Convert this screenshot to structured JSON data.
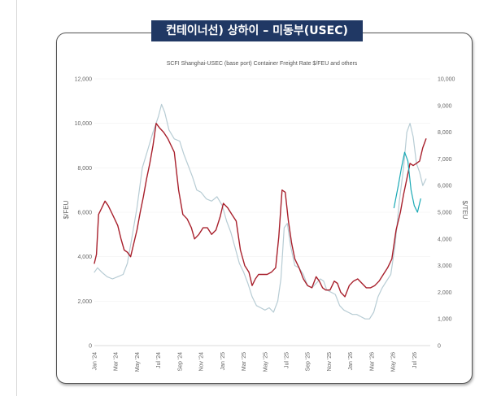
{
  "header": {
    "title": "컨테이너선) 상하이 – 미동부(USEC)"
  },
  "chart_data": {
    "type": "line",
    "title": "SCFI Shanghai-USEC (base port) Container Freight Rate $/FEU and others",
    "ylabel_left": "$/FEU",
    "ylabel_right": "$/TEU",
    "ylim_left": [
      0,
      12000
    ],
    "ylim_right": [
      0,
      10000
    ],
    "yticks_left": [
      "0",
      "2,000",
      "4,000",
      "6,000",
      "8,000",
      "10,000",
      "12,000"
    ],
    "yticks_right": [
      "0",
      "1,000",
      "2,000",
      "3,000",
      "4,000",
      "5,000",
      "6,000",
      "7,000",
      "8,000",
      "9,000",
      "10,000"
    ],
    "xlim": [
      0,
      31.5
    ],
    "x_ticks": [
      {
        "label": "Jan '24",
        "x": 0
      },
      {
        "label": "Mar '24",
        "x": 2
      },
      {
        "label": "May '24",
        "x": 4
      },
      {
        "label": "Jul '24",
        "x": 6
      },
      {
        "label": "Sep '24",
        "x": 8
      },
      {
        "label": "Nov '24",
        "x": 10
      },
      {
        "label": "Jan '25",
        "x": 12
      },
      {
        "label": "Mar '25",
        "x": 14
      },
      {
        "label": "May '25",
        "x": 16
      },
      {
        "label": "Jul '25",
        "x": 18
      },
      {
        "label": "Sep '25",
        "x": 20
      },
      {
        "label": "Nov '25",
        "x": 22
      },
      {
        "label": "Jan '26",
        "x": 24
      },
      {
        "label": "Mar '26",
        "x": 26
      },
      {
        "label": "May '26",
        "x": 28
      },
      {
        "label": "Jul '26",
        "x": 30
      }
    ],
    "series": [
      {
        "color": "#b7ccd4",
        "axis": "left",
        "points": [
          [
            0,
            3300
          ],
          [
            0.3,
            3500
          ],
          [
            0.7,
            3300
          ],
          [
            1.2,
            3100
          ],
          [
            1.7,
            3000
          ],
          [
            2.2,
            3100
          ],
          [
            2.7,
            3200
          ],
          [
            3.1,
            3700
          ],
          [
            3.5,
            4800
          ],
          [
            4,
            6200
          ],
          [
            4.5,
            8000
          ],
          [
            5,
            8800
          ],
          [
            5.5,
            9600
          ],
          [
            6,
            10300
          ],
          [
            6.3,
            10850
          ],
          [
            6.6,
            10500
          ],
          [
            7,
            9700
          ],
          [
            7.5,
            9300
          ],
          [
            8,
            9200
          ],
          [
            8.4,
            8600
          ],
          [
            8.8,
            8100
          ],
          [
            9.2,
            7600
          ],
          [
            9.6,
            7000
          ],
          [
            10,
            6900
          ],
          [
            10.5,
            6600
          ],
          [
            11,
            6500
          ],
          [
            11.5,
            6700
          ],
          [
            12,
            6300
          ],
          [
            12.4,
            5600
          ],
          [
            12.8,
            5100
          ],
          [
            13.2,
            4400
          ],
          [
            13.6,
            3700
          ],
          [
            14,
            3300
          ],
          [
            14.4,
            2800
          ],
          [
            14.8,
            2200
          ],
          [
            15.2,
            1800
          ],
          [
            15.6,
            1700
          ],
          [
            16,
            1600
          ],
          [
            16.4,
            1700
          ],
          [
            16.8,
            1500
          ],
          [
            17.2,
            2000
          ],
          [
            17.5,
            3000
          ],
          [
            17.8,
            5300
          ],
          [
            18.1,
            5500
          ],
          [
            18.4,
            4500
          ],
          [
            18.8,
            3600
          ],
          [
            19.2,
            3500
          ],
          [
            19.6,
            3200
          ],
          [
            20,
            2700
          ],
          [
            20.4,
            2600
          ],
          [
            20.8,
            2800
          ],
          [
            21.2,
            3000
          ],
          [
            21.5,
            2900
          ],
          [
            21.8,
            2500
          ],
          [
            22.2,
            2400
          ],
          [
            22.6,
            2300
          ],
          [
            23,
            1800
          ],
          [
            23.4,
            1600
          ],
          [
            23.8,
            1500
          ],
          [
            24.2,
            1400
          ],
          [
            24.6,
            1400
          ],
          [
            25,
            1300
          ],
          [
            25.4,
            1200
          ],
          [
            25.8,
            1200
          ],
          [
            26.2,
            1500
          ],
          [
            26.6,
            2200
          ],
          [
            27,
            2600
          ],
          [
            27.4,
            2900
          ],
          [
            27.8,
            3200
          ],
          [
            28.2,
            4500
          ],
          [
            28.6,
            6500
          ],
          [
            29,
            8000
          ],
          [
            29.3,
            9600
          ],
          [
            29.6,
            10000
          ],
          [
            29.9,
            9400
          ],
          [
            30.2,
            8200
          ],
          [
            30.5,
            7800
          ],
          [
            30.8,
            7200
          ],
          [
            31.1,
            7500
          ]
        ]
      },
      {
        "color": "#a8202c",
        "axis": "left",
        "points": [
          [
            0,
            3700
          ],
          [
            0.2,
            4100
          ],
          [
            0.4,
            5900
          ],
          [
            0.7,
            6200
          ],
          [
            1,
            6500
          ],
          [
            1.3,
            6300
          ],
          [
            1.6,
            6000
          ],
          [
            1.9,
            5700
          ],
          [
            2.2,
            5400
          ],
          [
            2.5,
            4800
          ],
          [
            2.8,
            4300
          ],
          [
            3.1,
            4200
          ],
          [
            3.4,
            4000
          ],
          [
            3.7,
            4600
          ],
          [
            4,
            5200
          ],
          [
            4.3,
            6000
          ],
          [
            4.6,
            6700
          ],
          [
            4.9,
            7500
          ],
          [
            5.2,
            8200
          ],
          [
            5.5,
            9000
          ],
          [
            5.8,
            10000
          ],
          [
            6.1,
            9800
          ],
          [
            6.5,
            9600
          ],
          [
            6.9,
            9300
          ],
          [
            7.2,
            9000
          ],
          [
            7.5,
            8700
          ],
          [
            7.9,
            7000
          ],
          [
            8.3,
            5900
          ],
          [
            8.7,
            5700
          ],
          [
            9.1,
            5300
          ],
          [
            9.4,
            4800
          ],
          [
            9.8,
            5000
          ],
          [
            10.2,
            5300
          ],
          [
            10.6,
            5300
          ],
          [
            11,
            5000
          ],
          [
            11.4,
            5200
          ],
          [
            11.8,
            5800
          ],
          [
            12.1,
            6400
          ],
          [
            12.5,
            6200
          ],
          [
            12.9,
            5900
          ],
          [
            13.3,
            5600
          ],
          [
            13.7,
            4300
          ],
          [
            14.1,
            3600
          ],
          [
            14.5,
            3300
          ],
          [
            14.8,
            2700
          ],
          [
            15.1,
            3000
          ],
          [
            15.4,
            3200
          ],
          [
            15.8,
            3200
          ],
          [
            16.2,
            3200
          ],
          [
            16.6,
            3300
          ],
          [
            17,
            3500
          ],
          [
            17.3,
            4900
          ],
          [
            17.6,
            7000
          ],
          [
            17.9,
            6900
          ],
          [
            18.2,
            5600
          ],
          [
            18.5,
            4600
          ],
          [
            18.8,
            3900
          ],
          [
            19.2,
            3500
          ],
          [
            19.6,
            3000
          ],
          [
            20,
            2700
          ],
          [
            20.4,
            2600
          ],
          [
            20.8,
            3100
          ],
          [
            21.1,
            2900
          ],
          [
            21.4,
            2600
          ],
          [
            21.7,
            2500
          ],
          [
            22.1,
            2500
          ],
          [
            22.5,
            2900
          ],
          [
            22.8,
            2800
          ],
          [
            23.1,
            2400
          ],
          [
            23.5,
            2200
          ],
          [
            23.9,
            2700
          ],
          [
            24.3,
            2900
          ],
          [
            24.7,
            3000
          ],
          [
            25.1,
            2800
          ],
          [
            25.5,
            2600
          ],
          [
            25.9,
            2600
          ],
          [
            26.3,
            2700
          ],
          [
            26.7,
            2900
          ],
          [
            27.1,
            3200
          ],
          [
            27.5,
            3500
          ],
          [
            27.9,
            3900
          ],
          [
            28.3,
            5200
          ],
          [
            28.7,
            6000
          ],
          [
            29,
            6800
          ],
          [
            29.3,
            7500
          ],
          [
            29.6,
            8200
          ],
          [
            29.9,
            8100
          ],
          [
            30.2,
            8200
          ],
          [
            30.5,
            8300
          ],
          [
            30.8,
            8900
          ],
          [
            31.1,
            9300
          ]
        ]
      },
      {
        "color": "#1aa9b5",
        "axis": "left",
        "points": [
          [
            28.1,
            6200
          ],
          [
            28.5,
            7200
          ],
          [
            28.8,
            8000
          ],
          [
            29.1,
            8700
          ],
          [
            29.4,
            8300
          ],
          [
            29.7,
            7000
          ],
          [
            30,
            6300
          ],
          [
            30.3,
            6000
          ],
          [
            30.6,
            6600
          ]
        ]
      }
    ]
  }
}
